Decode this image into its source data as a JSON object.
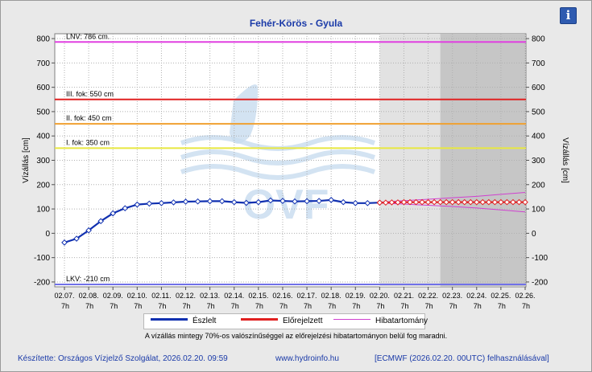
{
  "header": {
    "title": "Fehér-Körös - Gyula",
    "info_label": "i"
  },
  "chart_data": {
    "type": "line",
    "title": "Fehér-Körös - Gyula",
    "ylabel": "Vízállás [cm]",
    "ylabel_right": "Vízállás [cm]",
    "ylim": [
      -220,
      820
    ],
    "yticks": [
      -200,
      -100,
      0,
      100,
      200,
      300,
      400,
      500,
      600,
      700,
      800
    ],
    "x_tick_labels": [
      "02.07.",
      "02.08.",
      "02.09.",
      "02.10.",
      "02.11.",
      "02.12.",
      "02.13.",
      "02.14.",
      "02.15.",
      "02.16.",
      "02.17.",
      "02.18.",
      "02.19.",
      "02.20.",
      "02.21.",
      "02.22.",
      "02.23.",
      "02.24.",
      "02.25.",
      "02.26."
    ],
    "x_tick_hour": "7h",
    "grid": true,
    "thresholds": [
      {
        "label": "LNV: 786 cm.",
        "value": 786,
        "color": "#e040e0"
      },
      {
        "label": "III. fok: 550 cm",
        "value": 550,
        "color": "#e02020"
      },
      {
        "label": "II. fok: 450 cm",
        "value": 450,
        "color": "#f0a030"
      },
      {
        "label": "I. fok: 350 cm",
        "value": 350,
        "color": "#e8e840"
      },
      {
        "label": "LKV: -210 cm",
        "value": -210,
        "color": "#7070e8"
      }
    ],
    "observed": {
      "name": "Észlelt",
      "color": "#1030b0",
      "x": [
        0,
        0.5,
        1,
        1.5,
        2,
        2.5,
        3,
        3.5,
        4,
        4.5,
        5,
        5.5,
        6,
        6.5,
        7,
        7.5,
        8,
        8.5,
        9,
        9.5,
        10,
        10.5,
        11,
        11.5,
        12,
        12.5,
        13
      ],
      "values": [
        -38,
        -22,
        12,
        50,
        82,
        103,
        118,
        122,
        124,
        127,
        130,
        131,
        132,
        132,
        128,
        125,
        128,
        135,
        133,
        131,
        132,
        133,
        137,
        128,
        124,
        124,
        126
      ]
    },
    "forecast": {
      "name": "Előrejelzett",
      "color": "#e02020",
      "x": [
        13,
        13.25,
        13.5,
        13.75,
        14,
        14.25,
        14.5,
        14.75,
        15,
        15.25,
        15.5,
        15.75,
        16,
        16.25,
        16.5,
        16.75,
        17,
        17.25,
        17.5,
        17.75,
        18,
        18.25,
        18.5,
        18.75,
        19
      ],
      "values": [
        126,
        126,
        127,
        127,
        128,
        128,
        128,
        128,
        128,
        128,
        128,
        128,
        128,
        128,
        128,
        128,
        128,
        128,
        128,
        128,
        128,
        128,
        128,
        128,
        128
      ]
    },
    "error_band": {
      "name": "Hibatartomány",
      "color": "#d040d0",
      "x": [
        13,
        14,
        15,
        16,
        17,
        18,
        19
      ],
      "upper": [
        128,
        134,
        140,
        146,
        152,
        160,
        168
      ],
      "lower": [
        124,
        120,
        115,
        110,
        104,
        96,
        88
      ]
    },
    "forecast_regions": [
      {
        "from": 13,
        "to": 15.5,
        "shade": "#e2e2e2"
      },
      {
        "from": 15.5,
        "to": 19,
        "shade": "#c6c6c6"
      }
    ]
  },
  "legend": {
    "observed": "Észlelt",
    "forecast": "Előrejelzett",
    "error": "Hibatartomány"
  },
  "note": "A vízállás mintegy 70%-os valószínűséggel az előrejelzési hibatartományon belül fog maradni.",
  "footer": {
    "made_by": "Készítette: Országos Vízjelző Szolgálat, 2026.02.20. 09:59",
    "website": "www.hydroinfo.hu",
    "source": "[ECMWF (2026.02.20. 00UTC) felhasználásával]"
  },
  "watermark": "OVF"
}
